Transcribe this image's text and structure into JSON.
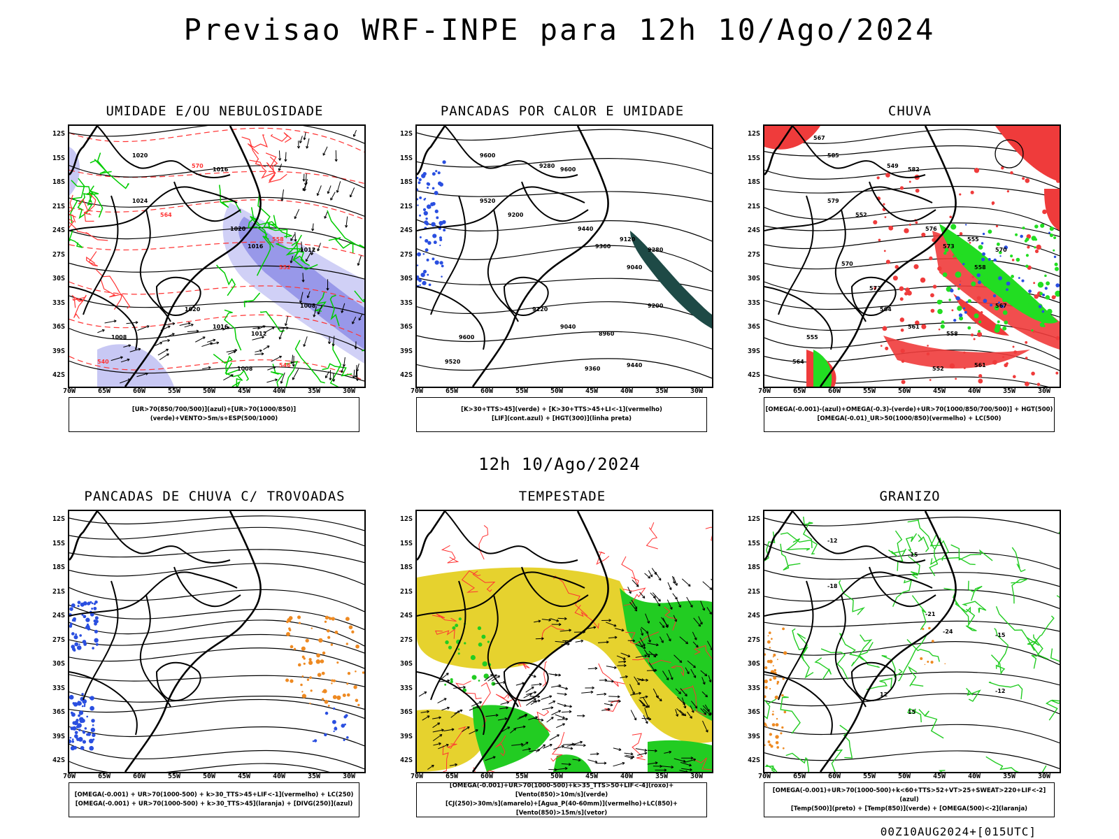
{
  "header": {
    "title": "Previsao WRF-INPE  para 12h 10/Ago/2024",
    "subtitle": "12h 10/Ago/2024",
    "footer": "00Z10AUG2024+[015UTC]"
  },
  "axes": {
    "lat_labels": [
      "12S",
      "15S",
      "18S",
      "21S",
      "24S",
      "27S",
      "30S",
      "33S",
      "36S",
      "39S",
      "42S"
    ],
    "lon_labels": [
      "70W",
      "65W",
      "60W",
      "55W",
      "50W",
      "45W",
      "40W",
      "35W",
      "30W"
    ]
  },
  "panels": [
    {
      "title": "UMIDADE E/OU NEBULOSIDADE",
      "legend": [
        "[UR>70(850/700/500)](azul)+[UR>70(1000/850)](verde)+VENTO>5m/s+ESP(500/1000)"
      ],
      "contour_labels": [
        "1020",
        "1016",
        "1024",
        "1020",
        "1016",
        "1012",
        "1008",
        "1020",
        "1016",
        "1012",
        "1008",
        "1008",
        "570",
        "564",
        "558",
        "552",
        "546",
        "540"
      ]
    },
    {
      "title": "PANCADAS POR CALOR E UMIDADE",
      "legend": [
        "[K>30+TTS>45](verde) + [K>30+TTS>45+LI<-1](vermelho)",
        "[LIF](cont.azul) + [HGT(300)](linha preta)"
      ],
      "contour_labels": [
        "9600",
        "9600",
        "9520",
        "9440",
        "9360",
        "9280",
        "9200",
        "9120",
        "9040",
        "8960",
        "9600",
        "9360",
        "9280",
        "9200",
        "9120",
        "9040",
        "9440",
        "9520"
      ]
    },
    {
      "title": "CHUVA",
      "legend": [
        "[OMEGA(-0.001)-(azul)+OMEGA(-0.3)-(verde)+UR>70(1000/850/700/500)] + HGT(500)",
        "[OMEGA(-0.01)_UR>50(1000/850)(vermelho) + LC(500)"
      ],
      "contour_labels": [
        "585",
        "582",
        "579",
        "576",
        "573",
        "570",
        "567",
        "564",
        "561",
        "558",
        "555",
        "552",
        "549",
        "552",
        "555",
        "558",
        "561",
        "564",
        "567",
        "570",
        "573"
      ]
    },
    {
      "title": "PANCADAS DE CHUVA C/ TROVOADAS",
      "legend": [
        "[OMEGA(-0.001) + UR>70(1000-500) + k>30_TTS>45+LIF<-1](vermelho) + LC(250)",
        "[OMEGA(-0.001) + UR>70(1000-500) + k>30_TTS>45](laranja) + [DIVG(250)](azul)"
      ],
      "contour_labels": []
    },
    {
      "title": "TEMPESTADE",
      "legend": [
        "[OMEGA(-0.001)+UR>70(1000-500)+k>35_TTS>50+LIF<-4](roxo)+[Vento(850)>10m/s](verde)",
        "[CJ(250)>30m/s](amarelo)+[Agua_P(40-60mm)](vermelho)+LC(850)+[Vento(850)>15m/s](vetor)"
      ],
      "contour_labels": []
    },
    {
      "title": "GRANIZO",
      "legend": [
        "[OMEGA(-0.001)+UR>70(1000-500)+k<60+TTS>52+VT>25+SWEAT>220+LIF<-2](azul)",
        "[Temp(500)](preto) + [Temp(850)](verde) + [OMEGA(500)<-2](laranja)"
      ],
      "contour_labels": [
        "-12",
        "-15",
        "-18",
        "-21",
        "-24",
        "-15",
        "-12",
        "12",
        "15"
      ]
    }
  ]
}
